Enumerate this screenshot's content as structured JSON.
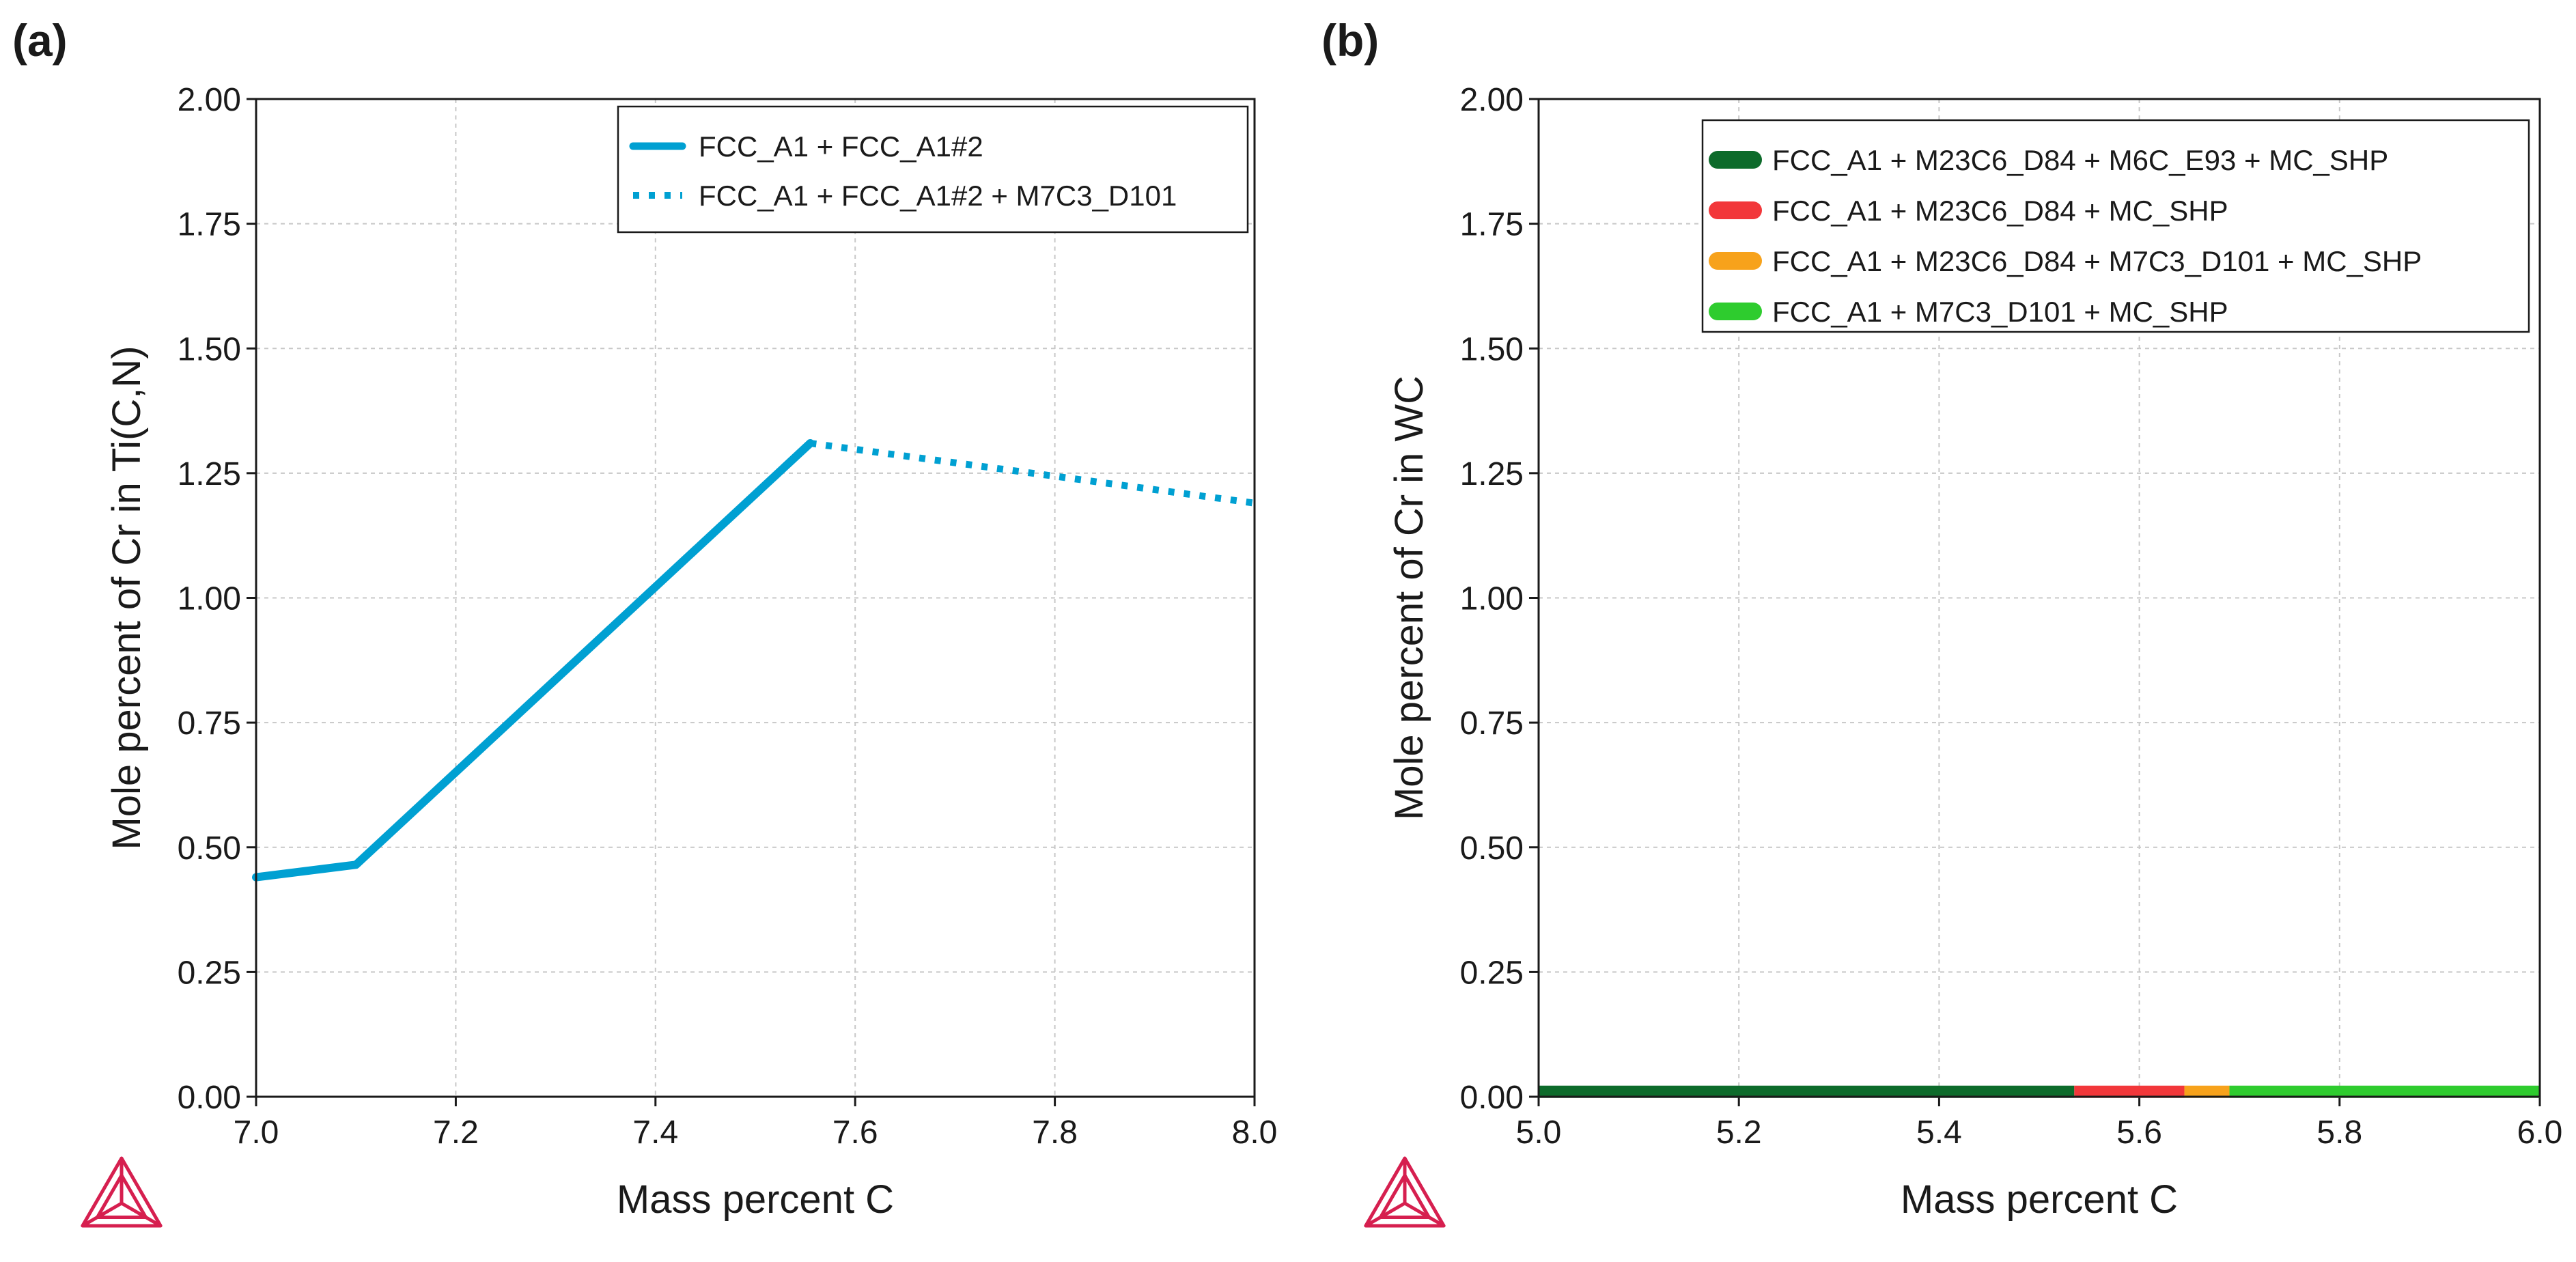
{
  "chart_data": [
    {
      "panel_label": "(a)",
      "type": "line",
      "xlabel": "Mass percent C",
      "ylabel": "Mole percent of Cr in Ti(C,N)",
      "xlim": [
        7.0,
        8.0
      ],
      "ylim": [
        0.0,
        2.0
      ],
      "x_ticks": [
        "7.0",
        "7.2",
        "7.4",
        "7.6",
        "7.8",
        "8.0"
      ],
      "y_ticks": [
        "0.00",
        "0.25",
        "0.50",
        "0.75",
        "1.00",
        "1.25",
        "1.50",
        "1.75",
        "2.00"
      ],
      "grid": true,
      "legend_position": "top-right",
      "series": [
        {
          "name": "FCC_A1 + FCC_A1#2",
          "color": "#00a0d2",
          "style": "solid",
          "x": [
            7.0,
            7.1,
            7.555
          ],
          "y": [
            0.44,
            0.465,
            1.31
          ]
        },
        {
          "name": "FCC_A1 + FCC_A1#2 + M7C3_D101",
          "color": "#00a0d2",
          "style": "dotted",
          "x": [
            7.555,
            8.0
          ],
          "y": [
            1.31,
            1.19
          ]
        }
      ]
    },
    {
      "panel_label": "(b)",
      "type": "line",
      "xlabel": "Mass percent C",
      "ylabel": "Mole percent of Cr in WC",
      "xlim": [
        5.0,
        6.0
      ],
      "ylim": [
        0.0,
        2.0
      ],
      "x_ticks": [
        "5.0",
        "5.2",
        "5.4",
        "5.6",
        "5.8",
        "6.0"
      ],
      "y_ticks": [
        "0.00",
        "0.25",
        "0.50",
        "0.75",
        "1.00",
        "1.25",
        "1.50",
        "1.75",
        "2.00"
      ],
      "grid": true,
      "legend_position": "top-right",
      "series": [
        {
          "name": "FCC_A1 + M23C6_D84 + M6C_E93 + MC_SHP",
          "color": "#0d6b2b",
          "style": "solid",
          "x": [
            5.0,
            5.535
          ],
          "y": [
            0.01,
            0.01
          ]
        },
        {
          "name": "FCC_A1 + M23C6_D84 + MC_SHP",
          "color": "#f2373a",
          "style": "solid",
          "x": [
            5.535,
            5.645
          ],
          "y": [
            0.01,
            0.01
          ]
        },
        {
          "name": "FCC_A1 + M23C6_D84 + M7C3_D101 + MC_SHP",
          "color": "#f7a21b",
          "style": "solid",
          "x": [
            5.645,
            5.69
          ],
          "y": [
            0.01,
            0.01
          ]
        },
        {
          "name": "FCC_A1 + M7C3_D101 + MC_SHP",
          "color": "#2ecc2e",
          "style": "solid",
          "x": [
            5.69,
            6.0
          ],
          "y": [
            0.01,
            0.01
          ]
        }
      ]
    }
  ],
  "logo": {
    "name": "thermo-calc-logo",
    "color": "#d61f4f"
  }
}
